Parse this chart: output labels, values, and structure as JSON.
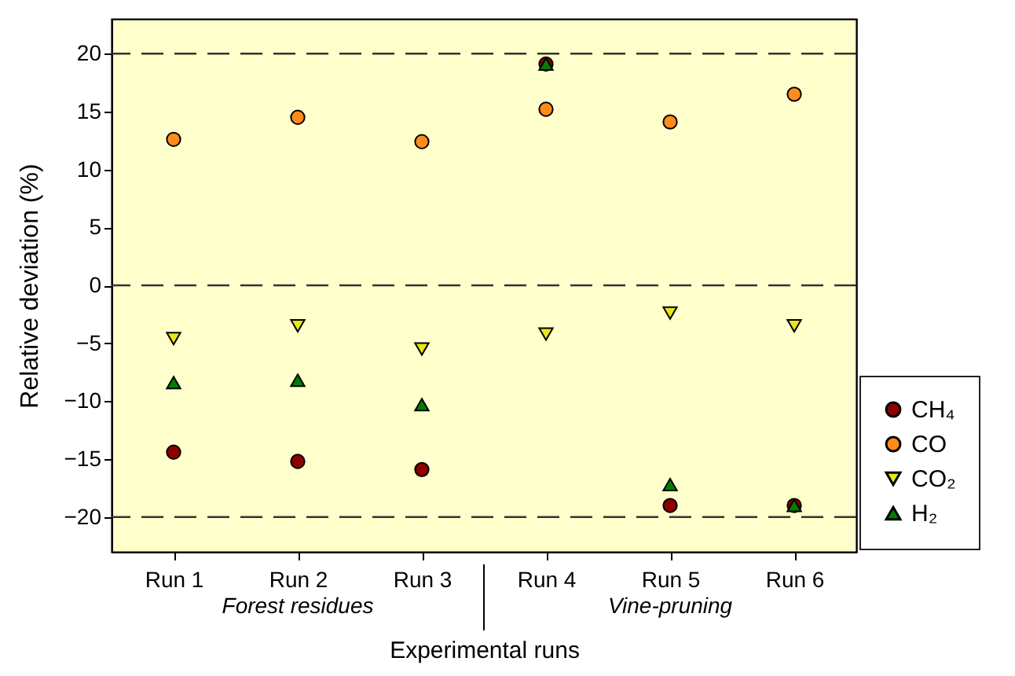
{
  "chart_data": {
    "type": "scatter",
    "xlabel": "Experimental runs",
    "ylabel": "Relative deviation (%)",
    "categories": [
      "Run 1",
      "Run 2",
      "Run 3",
      "Run 4",
      "Run 5",
      "Run 6"
    ],
    "series": [
      {
        "name": "CH₄",
        "color": "#8b0000",
        "marker": "circle",
        "values": [
          -14.4,
          -15.2,
          -15.9,
          19.1,
          -19.0,
          -19.0
        ]
      },
      {
        "name": "CO",
        "color": "#ff8c1a",
        "marker": "circle",
        "values": [
          12.6,
          14.5,
          12.4,
          15.2,
          14.1,
          16.5
        ]
      },
      {
        "name": "CO₂",
        "color": "#e6e61a",
        "marker": "triangle-down",
        "values": [
          -4.6,
          -3.5,
          -5.5,
          -4.2,
          -2.4,
          -3.5
        ]
      },
      {
        "name": "H₂",
        "color": "#008000",
        "marker": "triangle",
        "values": [
          -8.4,
          -8.2,
          -10.3,
          19.1,
          -17.2,
          -19.0
        ]
      }
    ],
    "ylim": [
      -23,
      23
    ],
    "yticks": [
      -20,
      -15,
      -10,
      -5,
      0,
      5,
      10,
      15,
      20
    ],
    "ref_lines": [
      {
        "axis": "y",
        "value": 20,
        "line_style": "dashed",
        "color": "#333333"
      },
      {
        "axis": "y",
        "value": 0,
        "line_style": "dashed",
        "color": "#333333"
      },
      {
        "axis": "y",
        "value": -20,
        "line_style": "dashed",
        "color": "#333333"
      }
    ],
    "annotations": [
      "Forest residues",
      "Vine-pruning"
    ],
    "legend": "right",
    "grid": false
  }
}
